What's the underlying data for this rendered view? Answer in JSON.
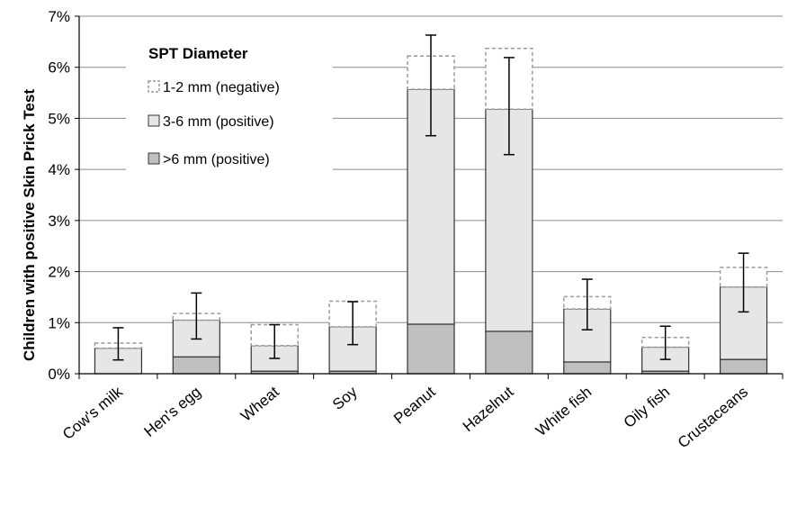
{
  "chart_data": {
    "type": "bar",
    "stacked": true,
    "ylabel": "Children with positive Skin Prick Test",
    "ylim": [
      0,
      7
    ],
    "y_ticks": [
      "0%",
      "1%",
      "2%",
      "3%",
      "4%",
      "5%",
      "6%",
      "7%"
    ],
    "y_unit": "%",
    "grid": "horizontal",
    "categories": [
      "Cow's milk",
      "Hen's egg",
      "Wheat",
      "Soy",
      "Peanut",
      "Hazelnut",
      "White fish",
      "Oily fish",
      "Crustaceans"
    ],
    "legend": {
      "title": "SPT Diameter",
      "placement": "top-left"
    },
    "series": [
      {
        "name": ">6 mm (positive)",
        "values": [
          0.0,
          0.33,
          0.05,
          0.05,
          0.97,
          0.83,
          0.23,
          0.05,
          0.28
        ],
        "color": "#bfbfbf",
        "border": "solid"
      },
      {
        "name": "3-6 mm (positive)",
        "values": [
          0.5,
          0.72,
          0.5,
          0.87,
          4.6,
          4.35,
          1.04,
          0.47,
          1.42
        ],
        "color": "#e6e6e6",
        "border": "solid"
      },
      {
        "name": "1-2 mm (negative)",
        "values": [
          0.1,
          0.13,
          0.41,
          0.5,
          0.65,
          1.19,
          0.24,
          0.19,
          0.38
        ],
        "color": "#ffffff",
        "border": "dashed"
      }
    ],
    "error_bars": [
      {
        "low": 0.27,
        "high": 0.9
      },
      {
        "low": 0.68,
        "high": 1.58
      },
      {
        "low": 0.3,
        "high": 0.96
      },
      {
        "low": 0.57,
        "high": 1.41
      },
      {
        "low": 4.66,
        "high": 6.63
      },
      {
        "low": 4.29,
        "high": 6.19
      },
      {
        "low": 0.86,
        "high": 1.85
      },
      {
        "low": 0.28,
        "high": 0.93
      },
      {
        "low": 1.21,
        "high": 2.36
      }
    ]
  }
}
